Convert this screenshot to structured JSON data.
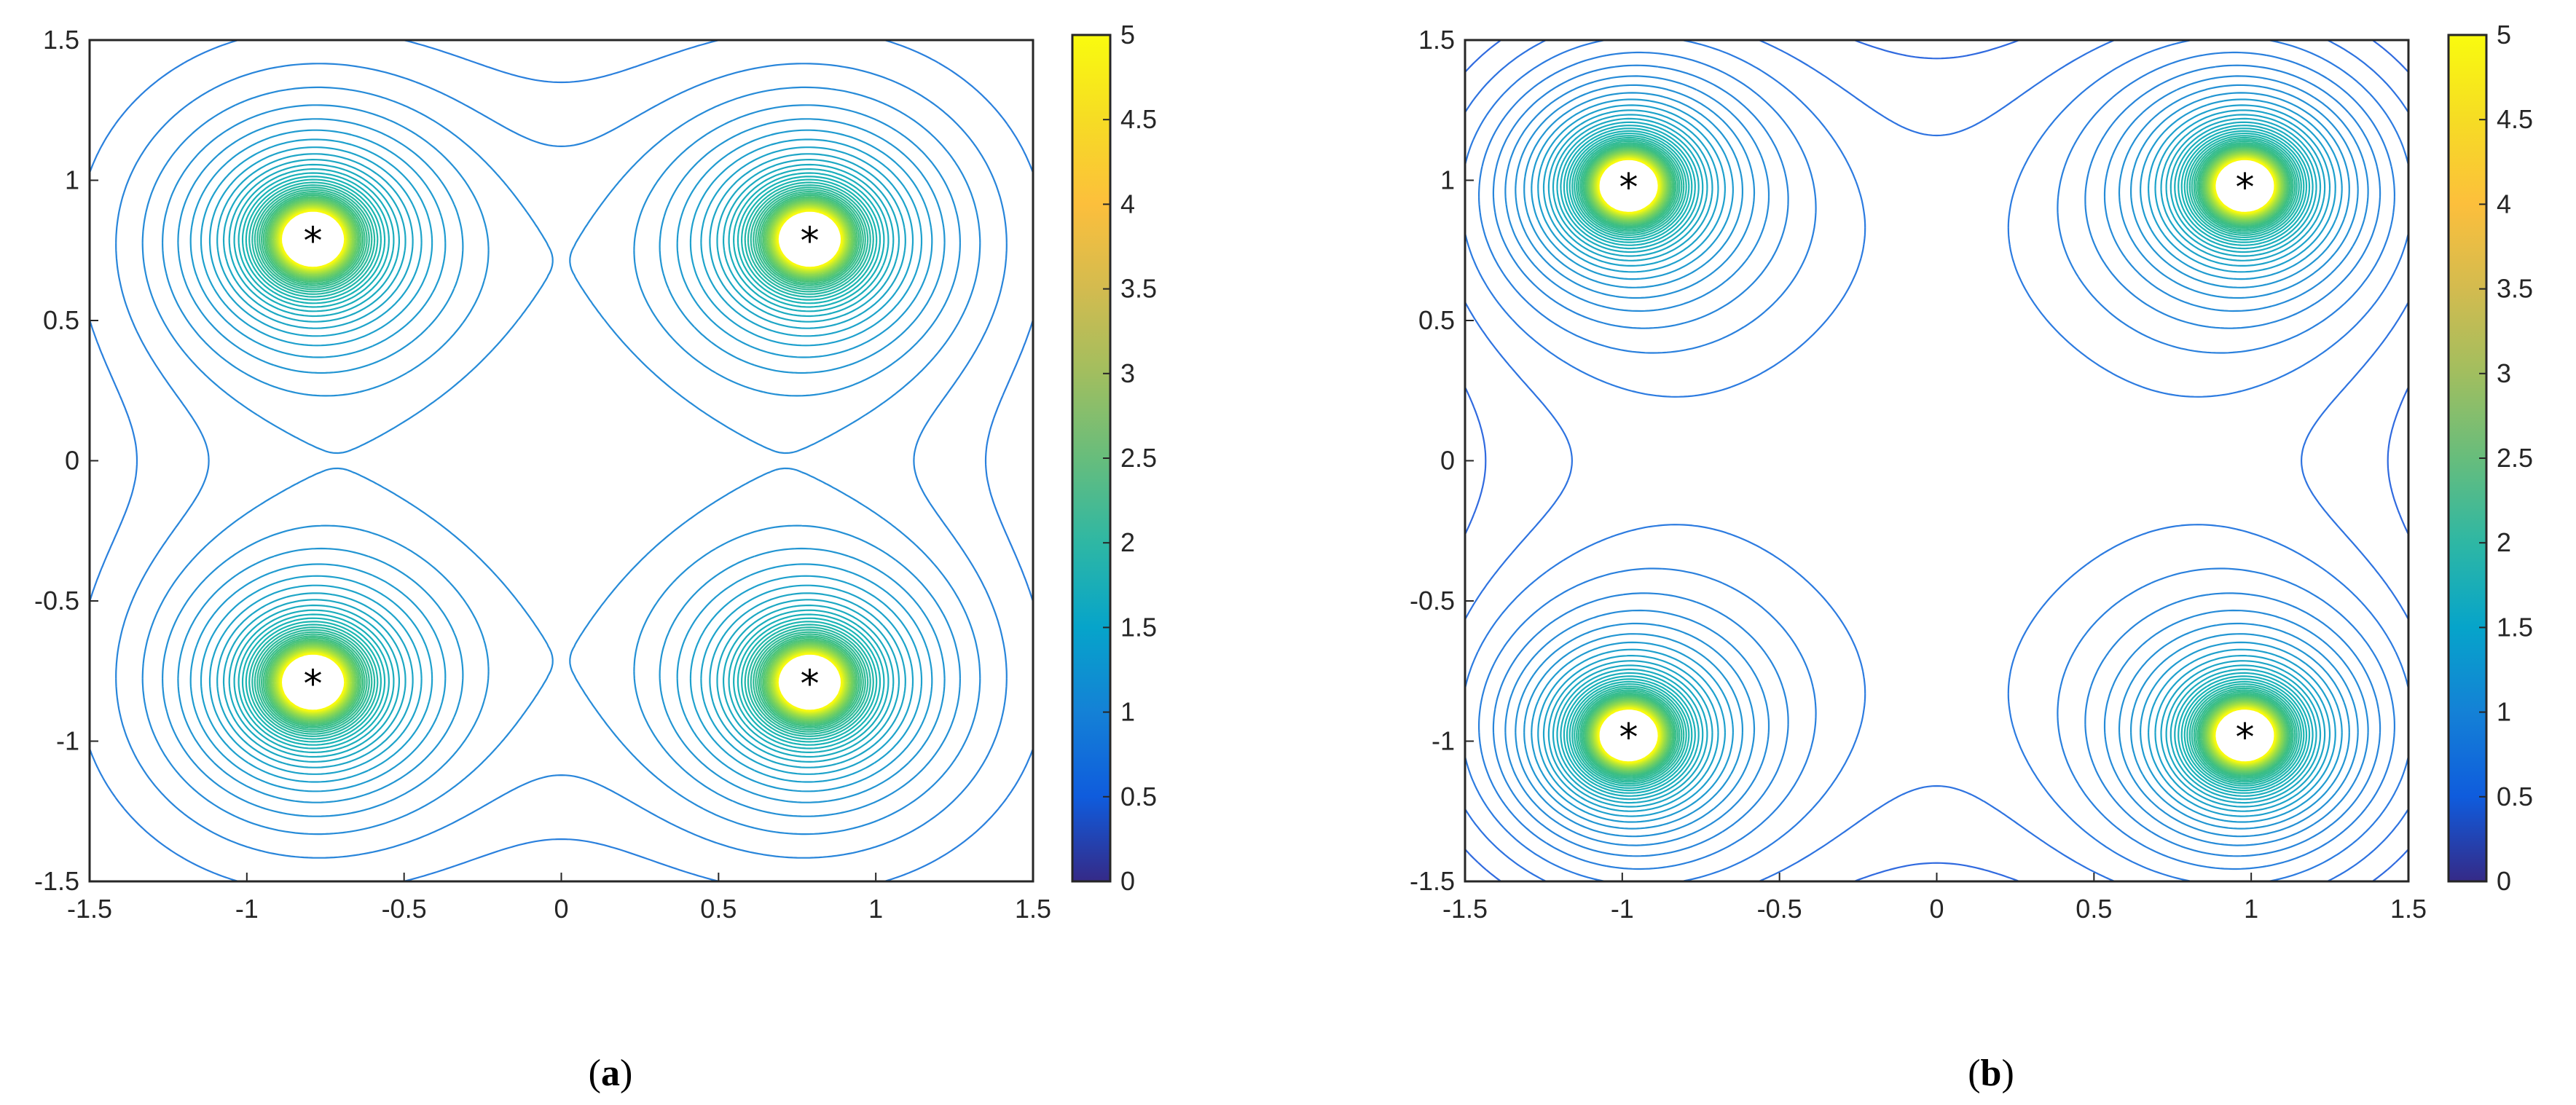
{
  "chart_data": [
    {
      "type": "contour",
      "panel_label": "a",
      "xlim": [
        -1.5,
        1.5
      ],
      "ylim": [
        -1.5,
        1.5
      ],
      "xticks": [
        "-1.5",
        "-1",
        "-0.5",
        "0",
        "0.5",
        "1",
        "1.5"
      ],
      "yticks": [
        "1.5",
        "1",
        "0.5",
        "0",
        "-0.5",
        "-1",
        "-1.5"
      ],
      "colorbar": {
        "range": [
          0,
          5
        ],
        "ticks": [
          "5",
          "4.5",
          "4",
          "3.5",
          "3",
          "2.5",
          "2",
          "1.5",
          "1",
          "0.5",
          "0"
        ]
      },
      "markers": [
        {
          "x": -0.79,
          "y": 0.79
        },
        {
          "x": 0.79,
          "y": 0.79
        },
        {
          "x": -0.79,
          "y": -0.79
        },
        {
          "x": 0.79,
          "y": -0.79
        }
      ],
      "marker_symbol": "*",
      "colormap": "parula"
    },
    {
      "type": "contour",
      "panel_label": "b",
      "xlim": [
        -1.5,
        1.5
      ],
      "ylim": [
        -1.5,
        1.5
      ],
      "xticks": [
        "-1.5",
        "-1",
        "-0.5",
        "0",
        "0.5",
        "1",
        "1.5"
      ],
      "yticks": [
        "1.5",
        "1",
        "0.5",
        "0",
        "-0.5",
        "-1",
        "-1.5"
      ],
      "colorbar": {
        "range": [
          0,
          5
        ],
        "ticks": [
          "5",
          "4.5",
          "4",
          "3.5",
          "3",
          "2.5",
          "2",
          "1.5",
          "1",
          "0.5",
          "0"
        ]
      },
      "markers": [
        {
          "x": -0.98,
          "y": 0.98
        },
        {
          "x": 0.98,
          "y": 0.98
        },
        {
          "x": -0.98,
          "y": -0.98
        },
        {
          "x": 0.98,
          "y": -0.98
        }
      ],
      "marker_symbol": "*",
      "colormap": "parula"
    }
  ],
  "captions": {
    "a": {
      "open": "(",
      "letter": "a",
      "close": ")"
    },
    "b": {
      "open": "(",
      "letter": "b",
      "close": ")"
    }
  },
  "colors": {
    "contour_low": "#3f33c8",
    "contour_mid": "#2f8fe0",
    "contour_high": "#19b3b5",
    "marker": "#000000",
    "axis": "#262626"
  }
}
